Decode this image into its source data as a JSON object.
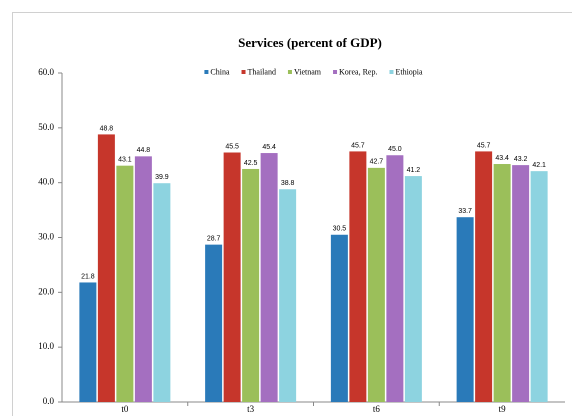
{
  "chart_data": {
    "type": "bar",
    "title": "Services (percent of GDP)",
    "categories": [
      "t0",
      "t3",
      "t6",
      "t9"
    ],
    "series": [
      {
        "name": "China",
        "color": "#2a7ab9",
        "values": [
          21.8,
          28.7,
          30.5,
          33.7
        ],
        "value_labels": [
          "21.8",
          "28.7",
          "30.5",
          "33.7"
        ]
      },
      {
        "name": "Thailand",
        "color": "#c6362b",
        "values": [
          48.8,
          45.5,
          45.7,
          45.7
        ],
        "value_labels": [
          "48.8",
          "45.5",
          "45.7",
          "45.7"
        ]
      },
      {
        "name": "Vietnam",
        "color": "#9bbf5a",
        "values": [
          43.1,
          42.5,
          42.7,
          43.4
        ],
        "value_labels": [
          "43.1",
          "42.5",
          "42.7",
          "43.4"
        ]
      },
      {
        "name": "Korea, Rep.",
        "color": "#a46fc0",
        "values": [
          44.8,
          45.4,
          45.0,
          43.2
        ],
        "value_labels": [
          "44.8",
          "45.4",
          "45.0",
          "43.2"
        ]
      },
      {
        "name": "Ethiopia",
        "color": "#8dd3e0",
        "values": [
          39.9,
          38.8,
          41.2,
          42.1
        ],
        "value_labels": [
          "39.9",
          "38.8",
          "41.2",
          "42.1"
        ]
      }
    ],
    "ylim": [
      0,
      60
    ],
    "yticks": [
      {
        "value": 0,
        "label": "0.0"
      },
      {
        "value": 10,
        "label": "10.0"
      },
      {
        "value": 20,
        "label": "20.0"
      },
      {
        "value": 30,
        "label": "30.0"
      },
      {
        "value": 40,
        "label": "40.0"
      },
      {
        "value": 50,
        "label": "50.0"
      },
      {
        "value": 60,
        "label": "60.0"
      }
    ],
    "grid": false,
    "legend": "top"
  }
}
